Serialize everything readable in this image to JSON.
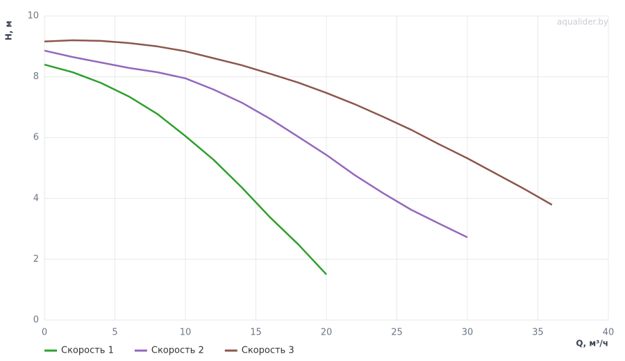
{
  "chart_data": {
    "type": "line",
    "watermark": "aqualider.by",
    "x_label": "Q, м³/ч",
    "y_label": "H, м",
    "xlim": [
      0,
      40
    ],
    "xticks": [
      0,
      5,
      10,
      15,
      20,
      25,
      30,
      35,
      40
    ],
    "ylim": [
      0,
      10
    ],
    "yticks": [
      0,
      2,
      4,
      6,
      8,
      10
    ],
    "grid": true,
    "legend": "bottom-left",
    "series": [
      {
        "name": "Скорость 1",
        "color": "#2ca02c",
        "x": [
          0,
          2,
          4,
          6,
          8,
          10,
          12,
          14,
          16,
          18,
          20
        ],
        "values": [
          8.4,
          8.15,
          7.8,
          7.35,
          6.78,
          6.05,
          5.27,
          4.36,
          3.38,
          2.49,
          1.5
        ]
      },
      {
        "name": "Скорость 2",
        "color": "#9467bd",
        "x": [
          0,
          2,
          4,
          6,
          8,
          10,
          12,
          14,
          16,
          18,
          20,
          22,
          24,
          26,
          28,
          30
        ],
        "values": [
          8.86,
          8.65,
          8.47,
          8.29,
          8.15,
          7.95,
          7.58,
          7.15,
          6.62,
          6.03,
          5.43,
          4.77,
          4.18,
          3.63,
          3.17,
          2.72
        ]
      },
      {
        "name": "Скорость 3",
        "color": "#8c564b",
        "x": [
          0,
          2,
          4,
          6,
          8,
          10,
          12,
          14,
          16,
          18,
          20,
          22,
          24,
          26,
          28,
          30,
          32,
          34,
          36
        ],
        "values": [
          9.16,
          9.2,
          9.18,
          9.11,
          9.0,
          8.84,
          8.61,
          8.38,
          8.1,
          7.81,
          7.47,
          7.1,
          6.69,
          6.26,
          5.78,
          5.32,
          4.82,
          4.32,
          3.79
        ]
      }
    ]
  }
}
